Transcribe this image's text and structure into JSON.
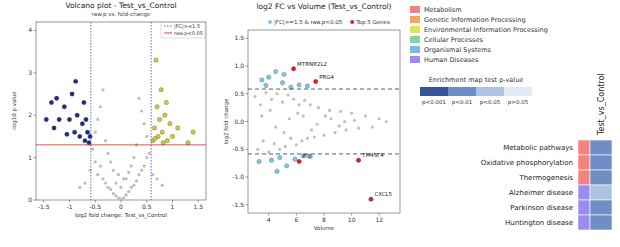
{
  "chart_data": [
    {
      "type": "scatter",
      "title": "Volcano plot - Test_vs_Control",
      "subtitle": "raw.p vs. fold-change",
      "x_label": "log2 fold change: Test_vs_Control",
      "y_label": "-log10 p value",
      "xlim": [
        -1.65,
        1.65
      ],
      "ylim": [
        0,
        4.2
      ],
      "xticks": [
        -1.5,
        -1,
        -0.5,
        0,
        0.5,
        1,
        1.5
      ],
      "yticks": [
        0,
        1,
        2,
        3,
        4
      ],
      "legend": "top-right",
      "reference_lines": [
        {
          "name": "|FC|>=1.5",
          "color": "#3a4fd0",
          "line_style": "dotted",
          "axis": "x",
          "values": [
            -0.585,
            0.585
          ]
        },
        {
          "name": "raw.p<0.05",
          "color": "#e02020",
          "line_style": "solid",
          "axis": "y",
          "values": [
            1.301
          ]
        }
      ],
      "series": [
        {
          "color": "#bdbdbd",
          "marker": "circle",
          "x": [
            -0.5,
            -0.45,
            -0.4,
            -0.35,
            -0.3,
            -0.25,
            -0.2,
            -0.15,
            -0.1,
            -0.05,
            0,
            0.05,
            0.1,
            0.15,
            0.2,
            0.25,
            0.3,
            0.35,
            0.4,
            0.45,
            0.5,
            -0.55,
            0.55,
            -0.5,
            0.5,
            -0.45,
            0.45,
            -0.4,
            0.4,
            -0.3,
            0.3,
            -0.2,
            0.2,
            -0.1,
            0.1,
            -0.35,
            0.35,
            -0.6,
            0.62,
            -0.7,
            0.7,
            -0.25,
            0.25,
            0,
            -0.05,
            0.05,
            -0.8,
            0.8,
            -0.15,
            0.15
          ],
          "values": [
            0.9,
            0.6,
            0.8,
            0.5,
            0.4,
            0.3,
            0.25,
            0.15,
            0.1,
            0.05,
            0.02,
            0.05,
            0.12,
            0.2,
            0.3,
            0.35,
            0.45,
            0.6,
            0.7,
            0.8,
            1.0,
            1.2,
            1.1,
            1.6,
            1.5,
            1.9,
            1.8,
            2.2,
            2.1,
            1.4,
            1.3,
            0.9,
            0.8,
            0.4,
            0.5,
            2.6,
            2.4,
            0.7,
            0.6,
            0.4,
            0.5,
            1.1,
            1.0,
            0.3,
            0.6,
            0.5,
            0.3,
            0.35,
            0.7,
            0.65
          ]
        },
        {
          "color": "#1a2f80",
          "marker": "circle",
          "x": [
            -1.35,
            -1.25,
            -1.2,
            -1.1,
            -1.0,
            -0.95,
            -0.9,
            -0.85,
            -0.8,
            -0.75,
            -0.7,
            -0.65,
            -0.62,
            -1.3,
            -1.05,
            -0.72,
            -0.68,
            -0.88,
            -1.45,
            -0.6
          ],
          "values": [
            2.3,
            2.4,
            1.9,
            2.2,
            1.9,
            2.5,
            1.6,
            2.0,
            1.5,
            1.8,
            1.4,
            1.6,
            1.35,
            1.7,
            1.55,
            2.3,
            1.9,
            2.8,
            1.9,
            1.5
          ]
        },
        {
          "color": "#c9c93a",
          "marker": "circle",
          "x": [
            0.62,
            0.65,
            0.7,
            0.72,
            0.75,
            0.8,
            0.85,
            0.9,
            0.95,
            1.0,
            0.68,
            0.78,
            0.88,
            1.1,
            1.3,
            1.4,
            0.66,
            0.82
          ],
          "values": [
            1.4,
            1.7,
            2.2,
            1.5,
            1.9,
            1.6,
            2.0,
            1.4,
            1.8,
            1.5,
            3.3,
            2.6,
            2.3,
            1.7,
            1.35,
            1.6,
            1.45,
            1.35
          ]
        }
      ]
    },
    {
      "type": "scatter",
      "title": "log2 FC vs Volume (Test_vs_Control)",
      "x_label": "Volume",
      "y_label": "log2 fold change",
      "xlim": [
        2.5,
        13.5
      ],
      "ylim": [
        -1.65,
        1.65
      ],
      "xticks": [
        4,
        6,
        8,
        10,
        12
      ],
      "yticks": [
        1.5,
        {
          "value": 1,
          "label": "1.0"
        },
        0.5,
        {
          "value": 0,
          "label": "0.0"
        },
        -0.5,
        {
          "value": -1,
          "label": "-1.0"
        },
        -1.5
      ],
      "legend": "top",
      "reference_lines": [
        {
          "color": "#333333",
          "line_style": "dashed",
          "axis": "y",
          "values": [
            0.585,
            -0.585
          ]
        }
      ],
      "series": [
        {
          "color": "#c0c0c0",
          "marker": "circle",
          "x": [
            3.0,
            3.2,
            3.4,
            3.6,
            3.8,
            4.0,
            4.2,
            4.4,
            4.6,
            4.8,
            5.0,
            5.2,
            5.4,
            5.6,
            5.8,
            6.0,
            6.2,
            6.4,
            6.6,
            6.8,
            7.0,
            7.3,
            7.6,
            8.0,
            8.4,
            8.8,
            9.2,
            9.6,
            10.0,
            10.5,
            11.0,
            11.5,
            12.0,
            3.5,
            4.5,
            5.5,
            6.5,
            7.5,
            8.5,
            9.5,
            4.1,
            5.1,
            6.1,
            7.1,
            8.1,
            9.1,
            10.2,
            12.5
          ],
          "values": [
            0.45,
            -0.5,
            0.3,
            -0.35,
            0.52,
            -0.55,
            0.4,
            -0.4,
            0.5,
            -0.5,
            0.35,
            -0.45,
            0.48,
            -0.3,
            0.4,
            -0.42,
            0.3,
            -0.35,
            0.38,
            -0.3,
            0.3,
            -0.28,
            0.25,
            -0.25,
            0.2,
            -0.2,
            0.18,
            -0.15,
            0.15,
            -0.12,
            0.1,
            -0.1,
            0.05,
            0.1,
            -0.1,
            0.05,
            0.1,
            -0.05,
            0.05,
            0,
            0.2,
            -0.2,
            0.15,
            -0.15,
            0.1,
            -0.08,
            0.02,
            0
          ]
        },
        {
          "name": "|FC|>=1.5 & raw.p<0.05",
          "color": "#7ec8e3",
          "marker": "circle",
          "x": [
            3.5,
            3.8,
            4.2,
            4.5,
            4.8,
            5.0,
            5.3,
            5.6,
            5.9,
            6.2,
            6.5,
            3.3,
            4.0,
            5.1,
            4.6,
            6.8,
            7.0
          ],
          "values": [
            0.75,
            0.65,
            -0.7,
            0.9,
            -0.65,
            0.7,
            -0.8,
            0.62,
            -0.68,
            0.66,
            -0.62,
            -0.72,
            0.8,
            0.85,
            -0.9,
            0.64,
            -0.63
          ]
        },
        {
          "name": "Top 5 Genes",
          "color": "#e02020",
          "marker": "circle",
          "x": [
            5.8,
            7.4,
            6.2,
            10.5,
            11.4
          ],
          "values": [
            0.95,
            0.72,
            -0.72,
            -0.7,
            -1.4
          ],
          "point_labels": [
            "MTRNR2L2",
            "PRG4",
            "PI3",
            "TM4SF4",
            "CXCL5"
          ]
        }
      ]
    },
    {
      "type": "heatmap",
      "group_legend": [
        {
          "name": "Metabolism",
          "color": "#f4837d"
        },
        {
          "name": "Genetic Information Processing",
          "color": "#f5a55a"
        },
        {
          "name": "Environmental Information Processing",
          "color": "#e3e05a"
        },
        {
          "name": "Cellular Processes",
          "color": "#7dd8a0"
        },
        {
          "name": "Organismal Systems",
          "color": "#7ab8e8"
        },
        {
          "name": "Human Diseases",
          "color": "#9a8cf0"
        }
      ],
      "color_scale_title": "Enrichment map test p-value",
      "color_scale": [
        {
          "label": "p<0.001",
          "color": "#35579a"
        },
        {
          "label": "p<0.01",
          "color": "#6f8fc4"
        },
        {
          "label": "p<0.05",
          "color": "#aec2e2"
        },
        {
          "label": "p>0.05",
          "color": "#e2eaf5"
        }
      ],
      "column_labels": [
        "Test_vs_Control"
      ],
      "row_labels": [
        "Metabolic pathways",
        "Oxidative phosphorylation",
        "Thermogenesis",
        "Alzheimer disease",
        "Parkinson disease",
        "Huntington disease"
      ],
      "row_groups": [
        "Metabolism",
        "Metabolism",
        "Metabolism",
        "Human Diseases",
        "Human Diseases",
        "Human Diseases"
      ],
      "cells": [
        [
          "p<0.01"
        ],
        [
          "p<0.01"
        ],
        [
          "p<0.01"
        ],
        [
          "p<0.05"
        ],
        [
          "p<0.01"
        ],
        [
          "p<0.01"
        ]
      ]
    }
  ]
}
